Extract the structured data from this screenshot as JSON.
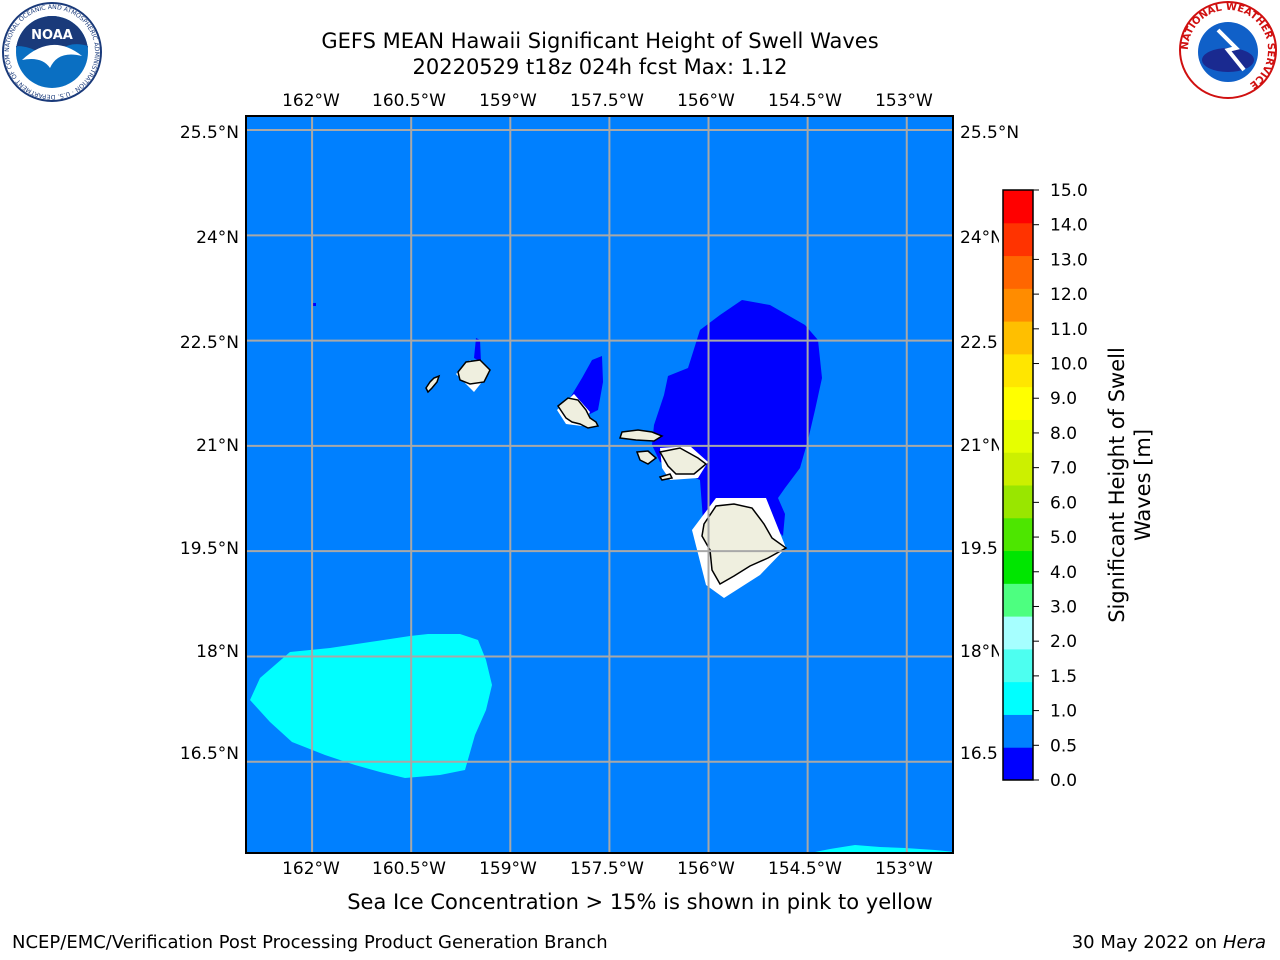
{
  "title": {
    "line1": "GEFS MEAN Hawaii Significant Height of Swell Waves",
    "line2": "20220529 t18z 024h fcst   Max: 1.12"
  },
  "map": {
    "lon_range": [
      -163.0,
      -152.3
    ],
    "lat_range": [
      15.2,
      25.7
    ],
    "lon_ticks": [
      -162,
      -160.5,
      -159,
      -157.5,
      -156,
      -154.5,
      -153
    ],
    "lat_ticks": [
      25.5,
      24,
      22.5,
      21,
      19.5,
      18,
      16.5
    ],
    "lon_labels_top": [
      "162°W",
      "160.5°W",
      "159°W",
      "157.5°W",
      "156°W",
      "154.5°W",
      "153°W"
    ],
    "lon_labels_bottom": [
      "162°W",
      "160.5°W",
      "159°W",
      "157.5°W",
      "156°W",
      "154.5°W",
      "153°W"
    ],
    "lat_labels_left": [
      "25.5°N",
      "24°N",
      "22.5°N",
      "21°N",
      "19.5°N",
      "18°N",
      "16.5°N"
    ],
    "lat_labels_right": [
      "25.5°N",
      "24°N",
      "22.5",
      "21°N",
      "19.5",
      "18°N",
      "16.5"
    ],
    "background_color": "#0080ff",
    "land_color": "#efefdf",
    "grid_color": "#a8a8a8"
  },
  "colorbar": {
    "label": "Significant Height of Swell Waves [m]",
    "label_line1": "Significant Height of Swell",
    "label_line2": "Waves [m]",
    "levels": [
      "0.0",
      "0.5",
      "1.0",
      "1.5",
      "2.0",
      "3.0",
      "4.0",
      "5.0",
      "6.0",
      "7.0",
      "8.0",
      "9.0",
      "10.0",
      "11.0",
      "12.0",
      "13.0",
      "14.0",
      "15.0"
    ],
    "colors": [
      "#0000ff",
      "#0080ff",
      "#00ffff",
      "#4dfff0",
      "#a6ffff",
      "#4dff80",
      "#00e600",
      "#4de600",
      "#99e600",
      "#ccf000",
      "#e6ff00",
      "#ffff00",
      "#ffe600",
      "#ffbf00",
      "#ff8c00",
      "#ff6600",
      "#ff3300",
      "#ff0000"
    ]
  },
  "sea_ice_note": "Sea Ice Concentration > 15% is shown in pink to yellow",
  "footer": {
    "left": "NCEP/EMC/Verification Post Processing Product Generation Branch",
    "right_date": "30 May 2022 on",
    "right_host": "Hera"
  },
  "logos": {
    "noaa_text": "NOAA",
    "noaa_ring_text": "NATIONAL OCEANIC AND ATMOSPHERIC ADMINISTRATION · U.S. DEPARTMENT OF COMMERCE",
    "nws_ring_text": "NATIONAL WEATHER SERVICE"
  }
}
